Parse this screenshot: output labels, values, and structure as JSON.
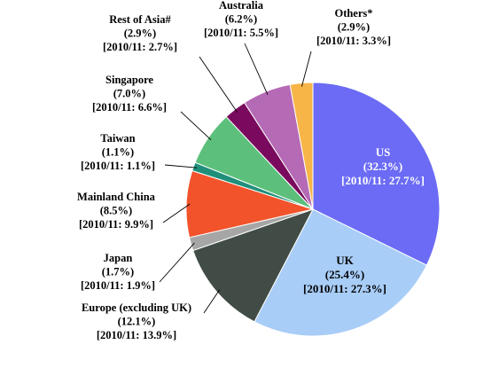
{
  "chart_data": {
    "type": "pie",
    "title": "",
    "start_angle_deg": 0,
    "direction": "clockwise",
    "slices": [
      {
        "name": "US",
        "share": "(32.3%)",
        "prev": "[2010/11: 27.7%]",
        "value": 32.3,
        "color": "#6b6bf5",
        "text_color": "#ffffff"
      },
      {
        "name": "UK",
        "share": "(25.4%)",
        "prev": "[2010/11: 27.3%]",
        "value": 25.4,
        "color": "#a8cdf7",
        "text_color": "#000000"
      },
      {
        "name": "Europe (excluding UK)",
        "share": "(12.1%)",
        "prev": "[2010/11: 13.9%]",
        "value": 12.1,
        "color": "#404c45",
        "text_color": "#000000"
      },
      {
        "name": "Japan",
        "share": "(1.7%)",
        "prev": "[2010/11: 1.9%]",
        "value": 1.7,
        "color": "#a6a6a6",
        "text_color": "#000000"
      },
      {
        "name": "Mainland China",
        "share": "(8.5%)",
        "prev": "[2010/11: 9.9%]",
        "value": 8.5,
        "color": "#f2532b",
        "text_color": "#000000"
      },
      {
        "name": "Taiwan",
        "share": "(1.1%)",
        "prev": "[2010/11: 1.1%]",
        "value": 1.1,
        "color": "#1f8f7a",
        "text_color": "#000000"
      },
      {
        "name": "Singapore",
        "share": "(7.0%)",
        "prev": "[2010/11: 6.6%]",
        "value": 7.0,
        "color": "#5cc07c",
        "text_color": "#000000"
      },
      {
        "name": "Rest of Asia#",
        "share": "(2.9%)",
        "prev": "[2010/11: 2.7%]",
        "value": 2.9,
        "color": "#7a0a5e",
        "text_color": "#000000"
      },
      {
        "name": "Australia",
        "share": "(6.2%)",
        "prev": "[2010/11: 5.5%]",
        "value": 6.2,
        "color": "#b56ab5",
        "text_color": "#000000"
      },
      {
        "name": "Others*",
        "share": "(2.9%)",
        "prev": "[2010/11: 3.3%]",
        "value": 2.9,
        "color": "#f7b548",
        "text_color": "#000000"
      }
    ]
  }
}
